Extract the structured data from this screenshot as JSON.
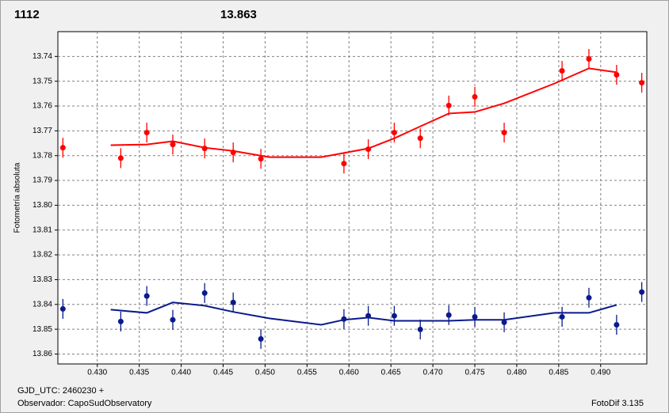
{
  "chart_data": {
    "type": "scatter",
    "annotations": [
      {
        "text": "1112",
        "color": "#ff0000"
      },
      {
        "text": "13.863",
        "color": "#0a1a8c"
      }
    ],
    "y_label": "Fotometría absoluta",
    "footer": {
      "gjd": "GJD_UTC: 2460230 +",
      "observer": "Observador: CapoSudObservatory",
      "version": "FotoDif 3.135"
    },
    "xlim": [
      0.4253,
      0.4955
    ],
    "ylim": [
      13.864,
      13.73
    ],
    "xticks": [
      {
        "value": 0.43,
        "label": "0.430"
      },
      {
        "value": 0.435,
        "label": "0.435"
      },
      {
        "value": 0.44,
        "label": "0.440"
      },
      {
        "value": 0.445,
        "label": "0.445"
      },
      {
        "value": 0.45,
        "label": "0.450"
      },
      {
        "value": 0.455,
        "label": "0.455"
      },
      {
        "value": 0.46,
        "label": "0.460"
      },
      {
        "value": 0.465,
        "label": "0.465"
      },
      {
        "value": 0.47,
        "label": "0.470"
      },
      {
        "value": 0.475,
        "label": "0.475"
      },
      {
        "value": 0.48,
        "label": "0.480"
      },
      {
        "value": 0.485,
        "label": "0.485"
      },
      {
        "value": 0.49,
        "label": "0.490"
      }
    ],
    "yticks": [
      13.74,
      13.75,
      13.76,
      13.77,
      13.78,
      13.79,
      {
        "value": 13.8,
        "label": "13.80"
      },
      13.81,
      13.82,
      13.83,
      13.84,
      13.85,
      13.86
    ],
    "grid": true,
    "series": [
      {
        "kind": "points",
        "color": "#ff0000",
        "error": 0.004,
        "x": [
          0.4259,
          0.4328,
          0.4359,
          0.439,
          0.4428,
          0.4462,
          0.4495,
          0.4594,
          0.4623,
          0.4654,
          0.4685,
          0.4719,
          0.475,
          0.4785,
          0.4854,
          0.4886,
          0.4919,
          0.4949
        ],
        "values": [
          13.7768,
          13.781,
          13.7707,
          13.7755,
          13.7771,
          13.7787,
          13.7813,
          13.7832,
          13.7774,
          13.7707,
          13.773,
          13.7598,
          13.7563,
          13.7707,
          13.7458,
          13.741,
          13.7474,
          13.7506
        ]
      },
      {
        "kind": "line",
        "color": "#ff0000",
        "x": [
          0.4316,
          0.4359,
          0.439,
          0.4428,
          0.4462,
          0.4505,
          0.4567,
          0.4623,
          0.4654,
          0.4685,
          0.4719,
          0.475,
          0.4785,
          0.4845,
          0.4886,
          0.4919
        ],
        "values": [
          13.7758,
          13.7755,
          13.7742,
          13.7768,
          13.7781,
          13.7806,
          13.7806,
          13.7771,
          13.773,
          13.7682,
          13.763,
          13.7624,
          13.7589,
          13.7509,
          13.7448,
          13.7464
        ]
      },
      {
        "kind": "points",
        "color": "#0a1a8c",
        "error": 0.004,
        "x": [
          0.4259,
          0.4328,
          0.4359,
          0.439,
          0.4428,
          0.4462,
          0.4495,
          0.4594,
          0.4623,
          0.4654,
          0.4685,
          0.4719,
          0.475,
          0.4785,
          0.4854,
          0.4886,
          0.4919,
          0.4949
        ],
        "values": [
          13.8418,
          13.8469,
          13.8366,
          13.8462,
          13.8354,
          13.8392,
          13.8539,
          13.8459,
          13.8446,
          13.8446,
          13.8501,
          13.8443,
          13.845,
          13.8472,
          13.845,
          13.8373,
          13.8482,
          13.835
        ]
      },
      {
        "kind": "line",
        "color": "#0a1a8c",
        "x": [
          0.4316,
          0.4359,
          0.439,
          0.4428,
          0.4462,
          0.4505,
          0.4567,
          0.4594,
          0.4623,
          0.4654,
          0.4719,
          0.475,
          0.4785,
          0.4845,
          0.4886,
          0.4919
        ],
        "values": [
          13.8421,
          13.8434,
          13.8392,
          13.8405,
          13.843,
          13.8456,
          13.8482,
          13.8462,
          13.8453,
          13.8466,
          13.8466,
          13.8462,
          13.8462,
          13.8434,
          13.8434,
          13.8402
        ]
      }
    ]
  }
}
